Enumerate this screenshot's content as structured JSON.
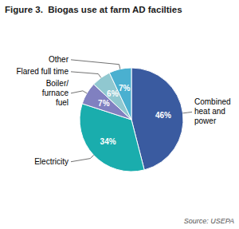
{
  "chart_data": {
    "type": "pie",
    "title": "Figure 3.  Biogas use at farm AD facilties",
    "categories": [
      "Combined\nheat and\npower",
      "Electricity",
      "Boiler/\nfurnace\nfuel",
      "Flared full time",
      "Other"
    ],
    "values": [
      46,
      34,
      7,
      6,
      7
    ],
    "value_labels": [
      "46%",
      "34%",
      "7%",
      "6%",
      "7%"
    ],
    "colors": [
      "#3a5ba0",
      "#1aadad",
      "#8080c0",
      "#90c8d0",
      "#4ab0d0"
    ],
    "data_labels": true,
    "annotations": [
      "Source: USEPA"
    ]
  }
}
